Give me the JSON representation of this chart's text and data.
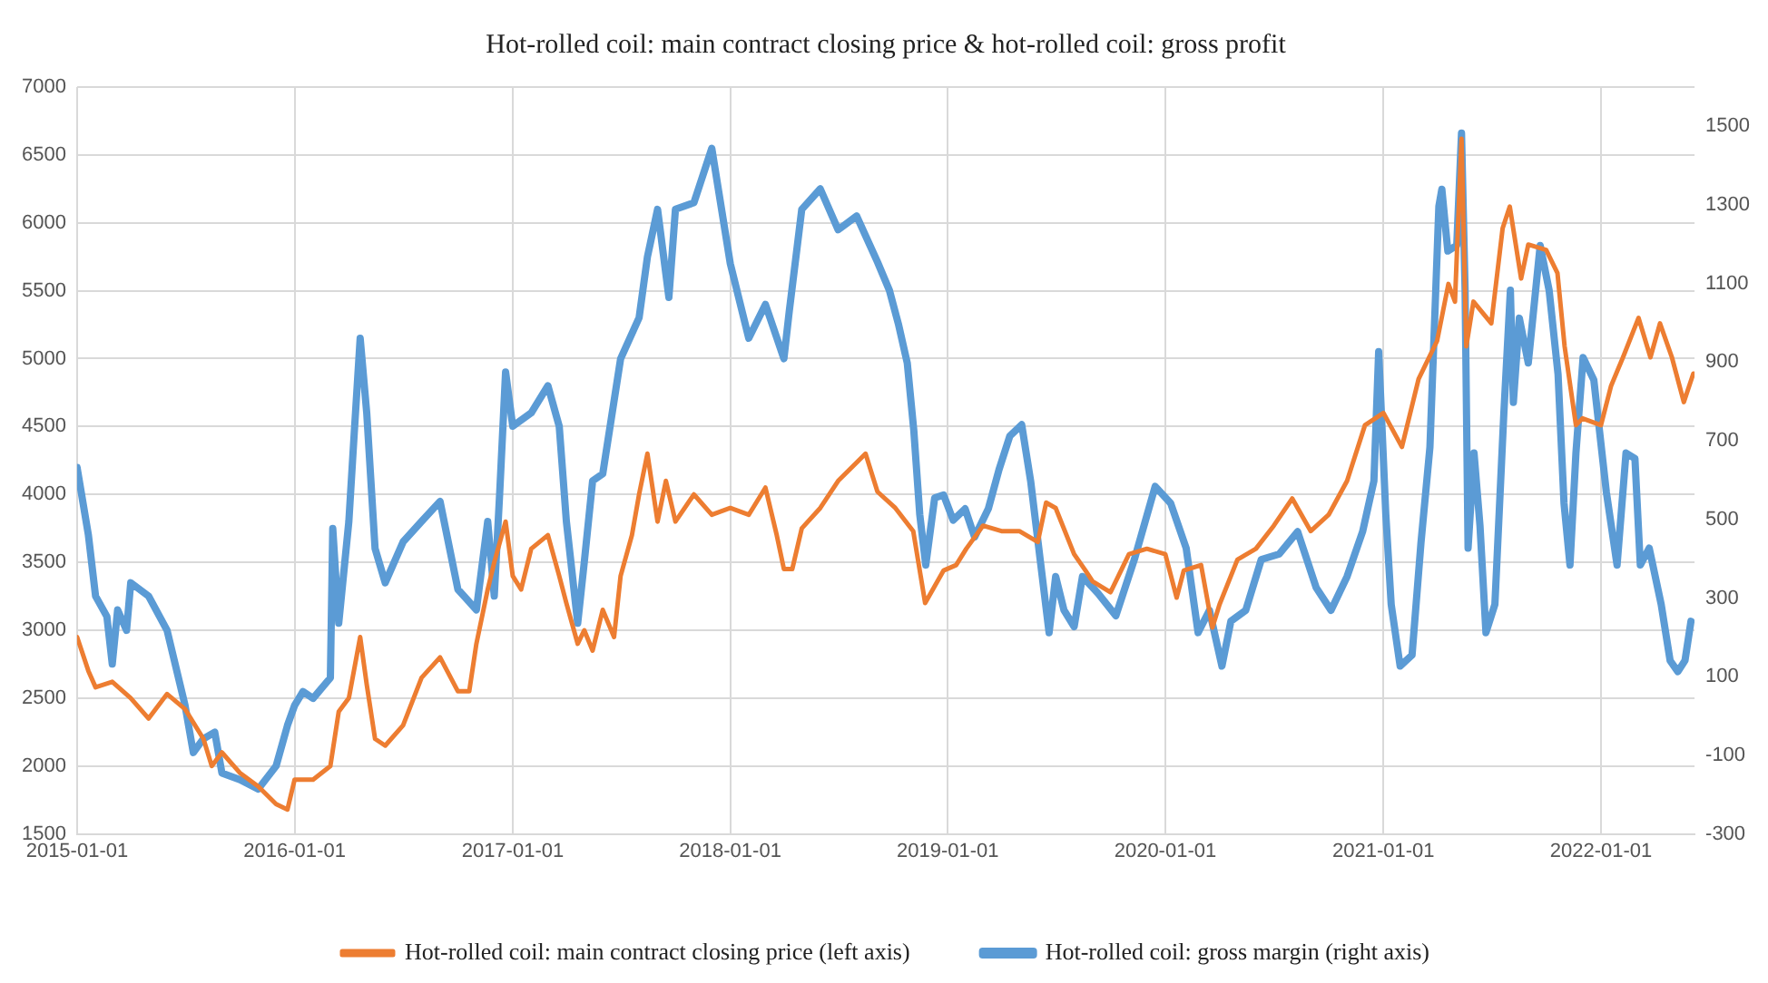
{
  "chart_data": {
    "type": "line",
    "title": "Hot-rolled coil: main contract closing price & hot-rolled coil: gross profit",
    "xlim": [
      "2015-01-01",
      "2022-06-07"
    ],
    "xticks": [
      "2015-01-01",
      "2016-01-01",
      "2017-01-01",
      "2018-01-01",
      "2019-01-01",
      "2020-01-01",
      "2021-01-01",
      "2022-01-01"
    ],
    "ylim": [
      1500,
      7000
    ],
    "yticks": [
      1500,
      2000,
      2500,
      3000,
      3500,
      4000,
      4500,
      5000,
      5500,
      6000,
      6500,
      7000
    ],
    "y2lim": [
      -300,
      1600
    ],
    "y2ticks": [
      -300,
      -100,
      100,
      300,
      500,
      700,
      900,
      1100,
      1300,
      1500
    ],
    "grid": true,
    "legend": "bottom",
    "marker": "none",
    "line_style": "solid",
    "series": [
      {
        "name": "Hot-rolled coil: main contract closing price (left axis)",
        "color": "#ed7d31",
        "x": [
          "2015-01-01",
          "2015-01-20",
          "2015-02-01",
          "2015-03-01",
          "2015-04-01",
          "2015-05-01",
          "2015-06-01",
          "2015-07-01",
          "2015-08-01",
          "2015-08-15",
          "2015-09-01",
          "2015-10-01",
          "2015-11-01",
          "2015-12-01",
          "2015-12-20",
          "2016-01-01",
          "2016-02-01",
          "2016-03-01",
          "2016-03-15",
          "2016-04-01",
          "2016-04-20",
          "2016-05-01",
          "2016-05-15",
          "2016-06-01",
          "2016-07-01",
          "2016-08-01",
          "2016-09-01",
          "2016-10-01",
          "2016-10-20",
          "2016-11-01",
          "2016-11-20",
          "2016-12-01",
          "2016-12-20",
          "2017-01-01",
          "2017-01-15",
          "2017-02-01",
          "2017-03-01",
          "2017-03-20",
          "2017-04-01",
          "2017-04-20",
          "2017-05-01",
          "2017-05-15",
          "2017-06-01",
          "2017-06-20",
          "2017-07-01",
          "2017-07-20",
          "2017-08-01",
          "2017-08-15",
          "2017-09-01",
          "2017-09-15",
          "2017-10-01",
          "2017-11-01",
          "2017-12-01",
          "2018-01-01",
          "2018-02-01",
          "2018-03-01",
          "2018-03-20",
          "2018-04-01",
          "2018-04-15",
          "2018-05-01",
          "2018-06-01",
          "2018-07-01",
          "2018-08-16",
          "2018-09-05",
          "2018-10-05",
          "2018-11-04",
          "2018-11-24",
          "2018-12-25",
          "2019-01-15",
          "2019-02-01",
          "2019-03-01",
          "2019-04-01",
          "2019-05-01",
          "2019-06-01",
          "2019-06-15",
          "2019-07-01",
          "2019-08-01",
          "2019-08-20",
          "2019-09-01",
          "2019-10-01",
          "2019-11-01",
          "2019-12-01",
          "2020-01-01",
          "2020-01-20",
          "2020-02-01",
          "2020-03-01",
          "2020-03-20",
          "2020-04-01",
          "2020-05-01",
          "2020-06-01",
          "2020-07-01",
          "2020-08-01",
          "2020-09-01",
          "2020-10-01",
          "2020-11-01",
          "2020-12-01",
          "2021-01-01",
          "2021-02-01",
          "2021-03-01",
          "2021-04-01",
          "2021-04-20",
          "2021-05-01",
          "2021-05-12",
          "2021-05-20",
          "2021-06-01",
          "2021-07-01",
          "2021-07-20",
          "2021-08-01",
          "2021-08-20",
          "2021-09-01",
          "2021-10-01",
          "2021-10-20",
          "2021-11-01",
          "2021-11-20",
          "2021-12-01",
          "2022-01-01",
          "2022-01-18",
          "2022-02-07",
          "2022-03-05",
          "2022-03-25",
          "2022-04-10",
          "2022-04-30",
          "2022-05-20",
          "2022-06-05"
        ],
        "values": [
          2950,
          2700,
          2580,
          2620,
          2500,
          2350,
          2530,
          2420,
          2200,
          2000,
          2100,
          1950,
          1850,
          1720,
          1680,
          1900,
          1900,
          2000,
          2400,
          2500,
          2950,
          2600,
          2200,
          2150,
          2300,
          2650,
          2800,
          2550,
          2550,
          2900,
          3300,
          3500,
          3800,
          3400,
          3300,
          3600,
          3700,
          3400,
          3200,
          2900,
          3000,
          2850,
          3150,
          2950,
          3400,
          3700,
          4000,
          4300,
          3800,
          4100,
          3800,
          4000,
          3850,
          3900,
          3850,
          4050,
          3700,
          3450,
          3450,
          3750,
          3900,
          4100,
          4300,
          4020,
          3900,
          3730,
          3200,
          3440,
          3480,
          3600,
          3770,
          3730,
          3730,
          3650,
          3940,
          3900,
          3560,
          3440,
          3360,
          3280,
          3560,
          3600,
          3560,
          3240,
          3440,
          3480,
          3020,
          3190,
          3520,
          3600,
          3770,
          3970,
          3730,
          3850,
          4100,
          4510,
          4600,
          4350,
          4850,
          5130,
          5550,
          5420,
          6620,
          5090,
          5420,
          5260,
          5960,
          6120,
          5590,
          5840,
          5800,
          5630,
          5090,
          4510,
          4560,
          4510,
          4800,
          5010,
          5300,
          5010,
          5260,
          5010,
          4680,
          4890
        ]
      },
      {
        "name": "Hot-rolled coil: gross margin (right axis)",
        "color": "#5b9bd5",
        "axis": "y2",
        "x": [
          "2015-01-01",
          "2015-01-20",
          "2015-02-01",
          "2015-02-20",
          "2015-03-01",
          "2015-03-10",
          "2015-03-25",
          "2015-04-01",
          "2015-05-01",
          "2015-06-01",
          "2015-07-01",
          "2015-07-15",
          "2015-08-01",
          "2015-08-20",
          "2015-09-01",
          "2015-10-01",
          "2015-11-01",
          "2015-12-01",
          "2015-12-20",
          "2016-01-01",
          "2016-01-15",
          "2016-02-01",
          "2016-03-01",
          "2016-03-05",
          "2016-03-15",
          "2016-04-01",
          "2016-04-10",
          "2016-04-20",
          "2016-05-01",
          "2016-05-15",
          "2016-06-01",
          "2016-07-01",
          "2016-08-01",
          "2016-09-01",
          "2016-10-01",
          "2016-11-01",
          "2016-11-20",
          "2016-12-01",
          "2016-12-10",
          "2016-12-20",
          "2017-01-01",
          "2017-02-01",
          "2017-03-01",
          "2017-03-20",
          "2017-04-01",
          "2017-04-20",
          "2017-05-01",
          "2017-05-15",
          "2017-06-01",
          "2017-07-01",
          "2017-08-01",
          "2017-08-15",
          "2017-09-01",
          "2017-09-20",
          "2017-10-01",
          "2017-11-01",
          "2017-12-01",
          "2018-01-01",
          "2018-02-01",
          "2018-03-01",
          "2018-04-01",
          "2018-04-10",
          "2018-05-01",
          "2018-06-01",
          "2018-07-01",
          "2018-08-01",
          "2018-09-05",
          "2018-09-25",
          "2018-10-10",
          "2018-10-25",
          "2018-11-05",
          "2018-11-15",
          "2018-11-25",
          "2018-12-10",
          "2018-12-25",
          "2019-01-10",
          "2019-01-30",
          "2019-02-15",
          "2019-03-10",
          "2019-03-28",
          "2019-04-15",
          "2019-05-05",
          "2019-05-20",
          "2019-06-05",
          "2019-06-20",
          "2019-07-01",
          "2019-07-15",
          "2019-08-01",
          "2019-08-15",
          "2019-09-10",
          "2019-10-10",
          "2019-11-10",
          "2019-12-15",
          "2020-01-10",
          "2020-02-05",
          "2020-02-25",
          "2020-03-15",
          "2020-04-05",
          "2020-04-20",
          "2020-05-15",
          "2020-06-10",
          "2020-07-10",
          "2020-08-10",
          "2020-09-10",
          "2020-10-05",
          "2020-11-01",
          "2020-11-27",
          "2020-12-16",
          "2020-12-24",
          "2021-01-05",
          "2021-01-14",
          "2021-01-29",
          "2021-02-18",
          "2021-03-05",
          "2021-03-20",
          "2021-04-04",
          "2021-04-09",
          "2021-04-19",
          "2021-05-04",
          "2021-05-12",
          "2021-05-18",
          "2021-05-23",
          "2021-06-02",
          "2021-06-12",
          "2021-06-22",
          "2021-07-07",
          "2021-07-22",
          "2021-08-02",
          "2021-08-07",
          "2021-08-17",
          "2021-09-01",
          "2021-09-21",
          "2021-10-06",
          "2021-10-21",
          "2021-10-31",
          "2021-11-10",
          "2021-11-20",
          "2021-12-02",
          "2021-12-20",
          "2022-01-10",
          "2022-01-28",
          "2022-02-12",
          "2022-02-27",
          "2022-03-08",
          "2022-03-23",
          "2022-04-12",
          "2022-04-27",
          "2022-05-10",
          "2022-05-22",
          "2022-06-01"
        ],
        "values": [
          632,
          460,
          305,
          253,
          132,
          270,
          218,
          339,
          305,
          218,
          28,
          -93,
          -58,
          -41,
          -145,
          -162,
          -186,
          -127,
          -24,
          27,
          62,
          45,
          97,
          477,
          236,
          495,
          719,
          961,
          771,
          426,
          339,
          443,
          495,
          546,
          322,
          270,
          495,
          305,
          564,
          875,
          737,
          771,
          840,
          737,
          495,
          236,
          391,
          598,
          616,
          909,
          1013,
          1168,
          1289,
          1065,
          1289,
          1306,
          1444,
          1151,
          961,
          1047,
          909,
          1030,
          1289,
          1341,
          1237,
          1272,
          1155,
          1083,
          998,
          898,
          726,
          512,
          384,
          555,
          562,
          498,
          527,
          455,
          527,
          627,
          712,
          741,
          598,
          398,
          212,
          355,
          269,
          227,
          355,
          312,
          255,
          398,
          584,
          541,
          427,
          212,
          269,
          127,
          241,
          269,
          398,
          412,
          469,
          327,
          269,
          355,
          469,
          598,
          927,
          512,
          284,
          127,
          155,
          441,
          684,
          1297,
          1340,
          1183,
          1197,
          1483,
          1083,
          427,
          669,
          484,
          212,
          284,
          769,
          1083,
          798,
          1012,
          898,
          1197,
          1083,
          869,
          541,
          384,
          669,
          912,
          855,
          570,
          384,
          669,
          655,
          384,
          427,
          284,
          141,
          113,
          141,
          241
        ]
      }
    ]
  }
}
